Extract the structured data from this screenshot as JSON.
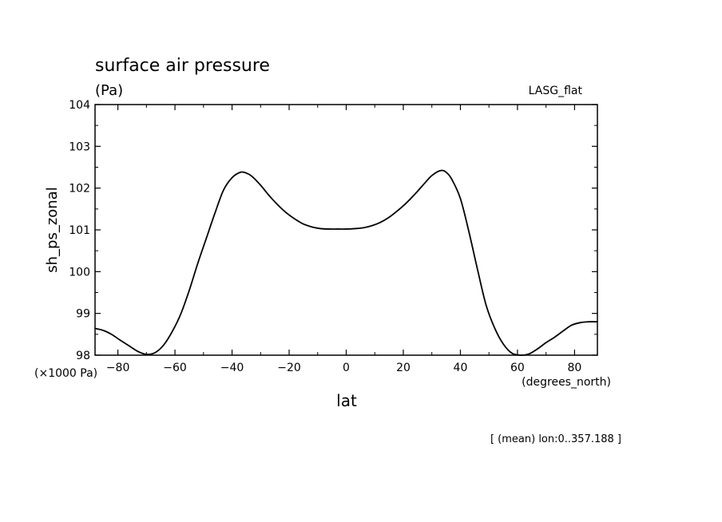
{
  "chart_data": {
    "type": "line",
    "title": "surface air pressure",
    "units_label": "(Pa)",
    "model_label": "LASG_flat",
    "ylabel": "sh_ps_zonal",
    "xlabel": "lat",
    "x_units_label": "(degrees_north)",
    "y_scale_label": "(×1000 Pa)",
    "footer_note": "[ (mean) lon:0..357.188 ]",
    "xlim": [
      -88,
      88
    ],
    "ylim": [
      98,
      104
    ],
    "x_ticks": [
      -80,
      -60,
      -40,
      -20,
      0,
      20,
      40,
      60,
      80
    ],
    "y_ticks": [
      98,
      99,
      100,
      101,
      102,
      103,
      104
    ],
    "grid": false,
    "line_color": "#000000",
    "series": [
      {
        "x": [
          -88,
          -85,
          -82,
          -79,
          -76,
          -73,
          -70,
          -67,
          -64,
          -61,
          -58,
          -55,
          -52,
          -49,
          -46,
          -43,
          -40,
          -37,
          -35,
          -33,
          -30,
          -27,
          -24,
          -21,
          -18,
          -15,
          -12,
          -9,
          -6,
          -3,
          0,
          3,
          6,
          9,
          12,
          15,
          18,
          21,
          24,
          27,
          30,
          33,
          35,
          37,
          40,
          43,
          46,
          49,
          52,
          55,
          58,
          61,
          64,
          67,
          70,
          73,
          76,
          79,
          82,
          85,
          88
        ],
        "y": [
          98.64,
          98.59,
          98.49,
          98.35,
          98.22,
          98.09,
          98.02,
          98.06,
          98.24,
          98.56,
          98.98,
          99.55,
          100.2,
          100.8,
          101.4,
          101.95,
          102.25,
          102.38,
          102.36,
          102.28,
          102.07,
          101.82,
          101.6,
          101.41,
          101.26,
          101.14,
          101.07,
          101.03,
          101.02,
          101.02,
          101.02,
          101.03,
          101.05,
          101.1,
          101.18,
          101.3,
          101.46,
          101.64,
          101.85,
          102.08,
          102.3,
          102.42,
          102.38,
          102.21,
          101.75,
          100.95,
          100.05,
          99.2,
          98.65,
          98.27,
          98.05,
          98.0,
          98.03,
          98.15,
          98.3,
          98.43,
          98.58,
          98.72,
          98.78,
          98.8,
          98.8
        ]
      }
    ]
  }
}
